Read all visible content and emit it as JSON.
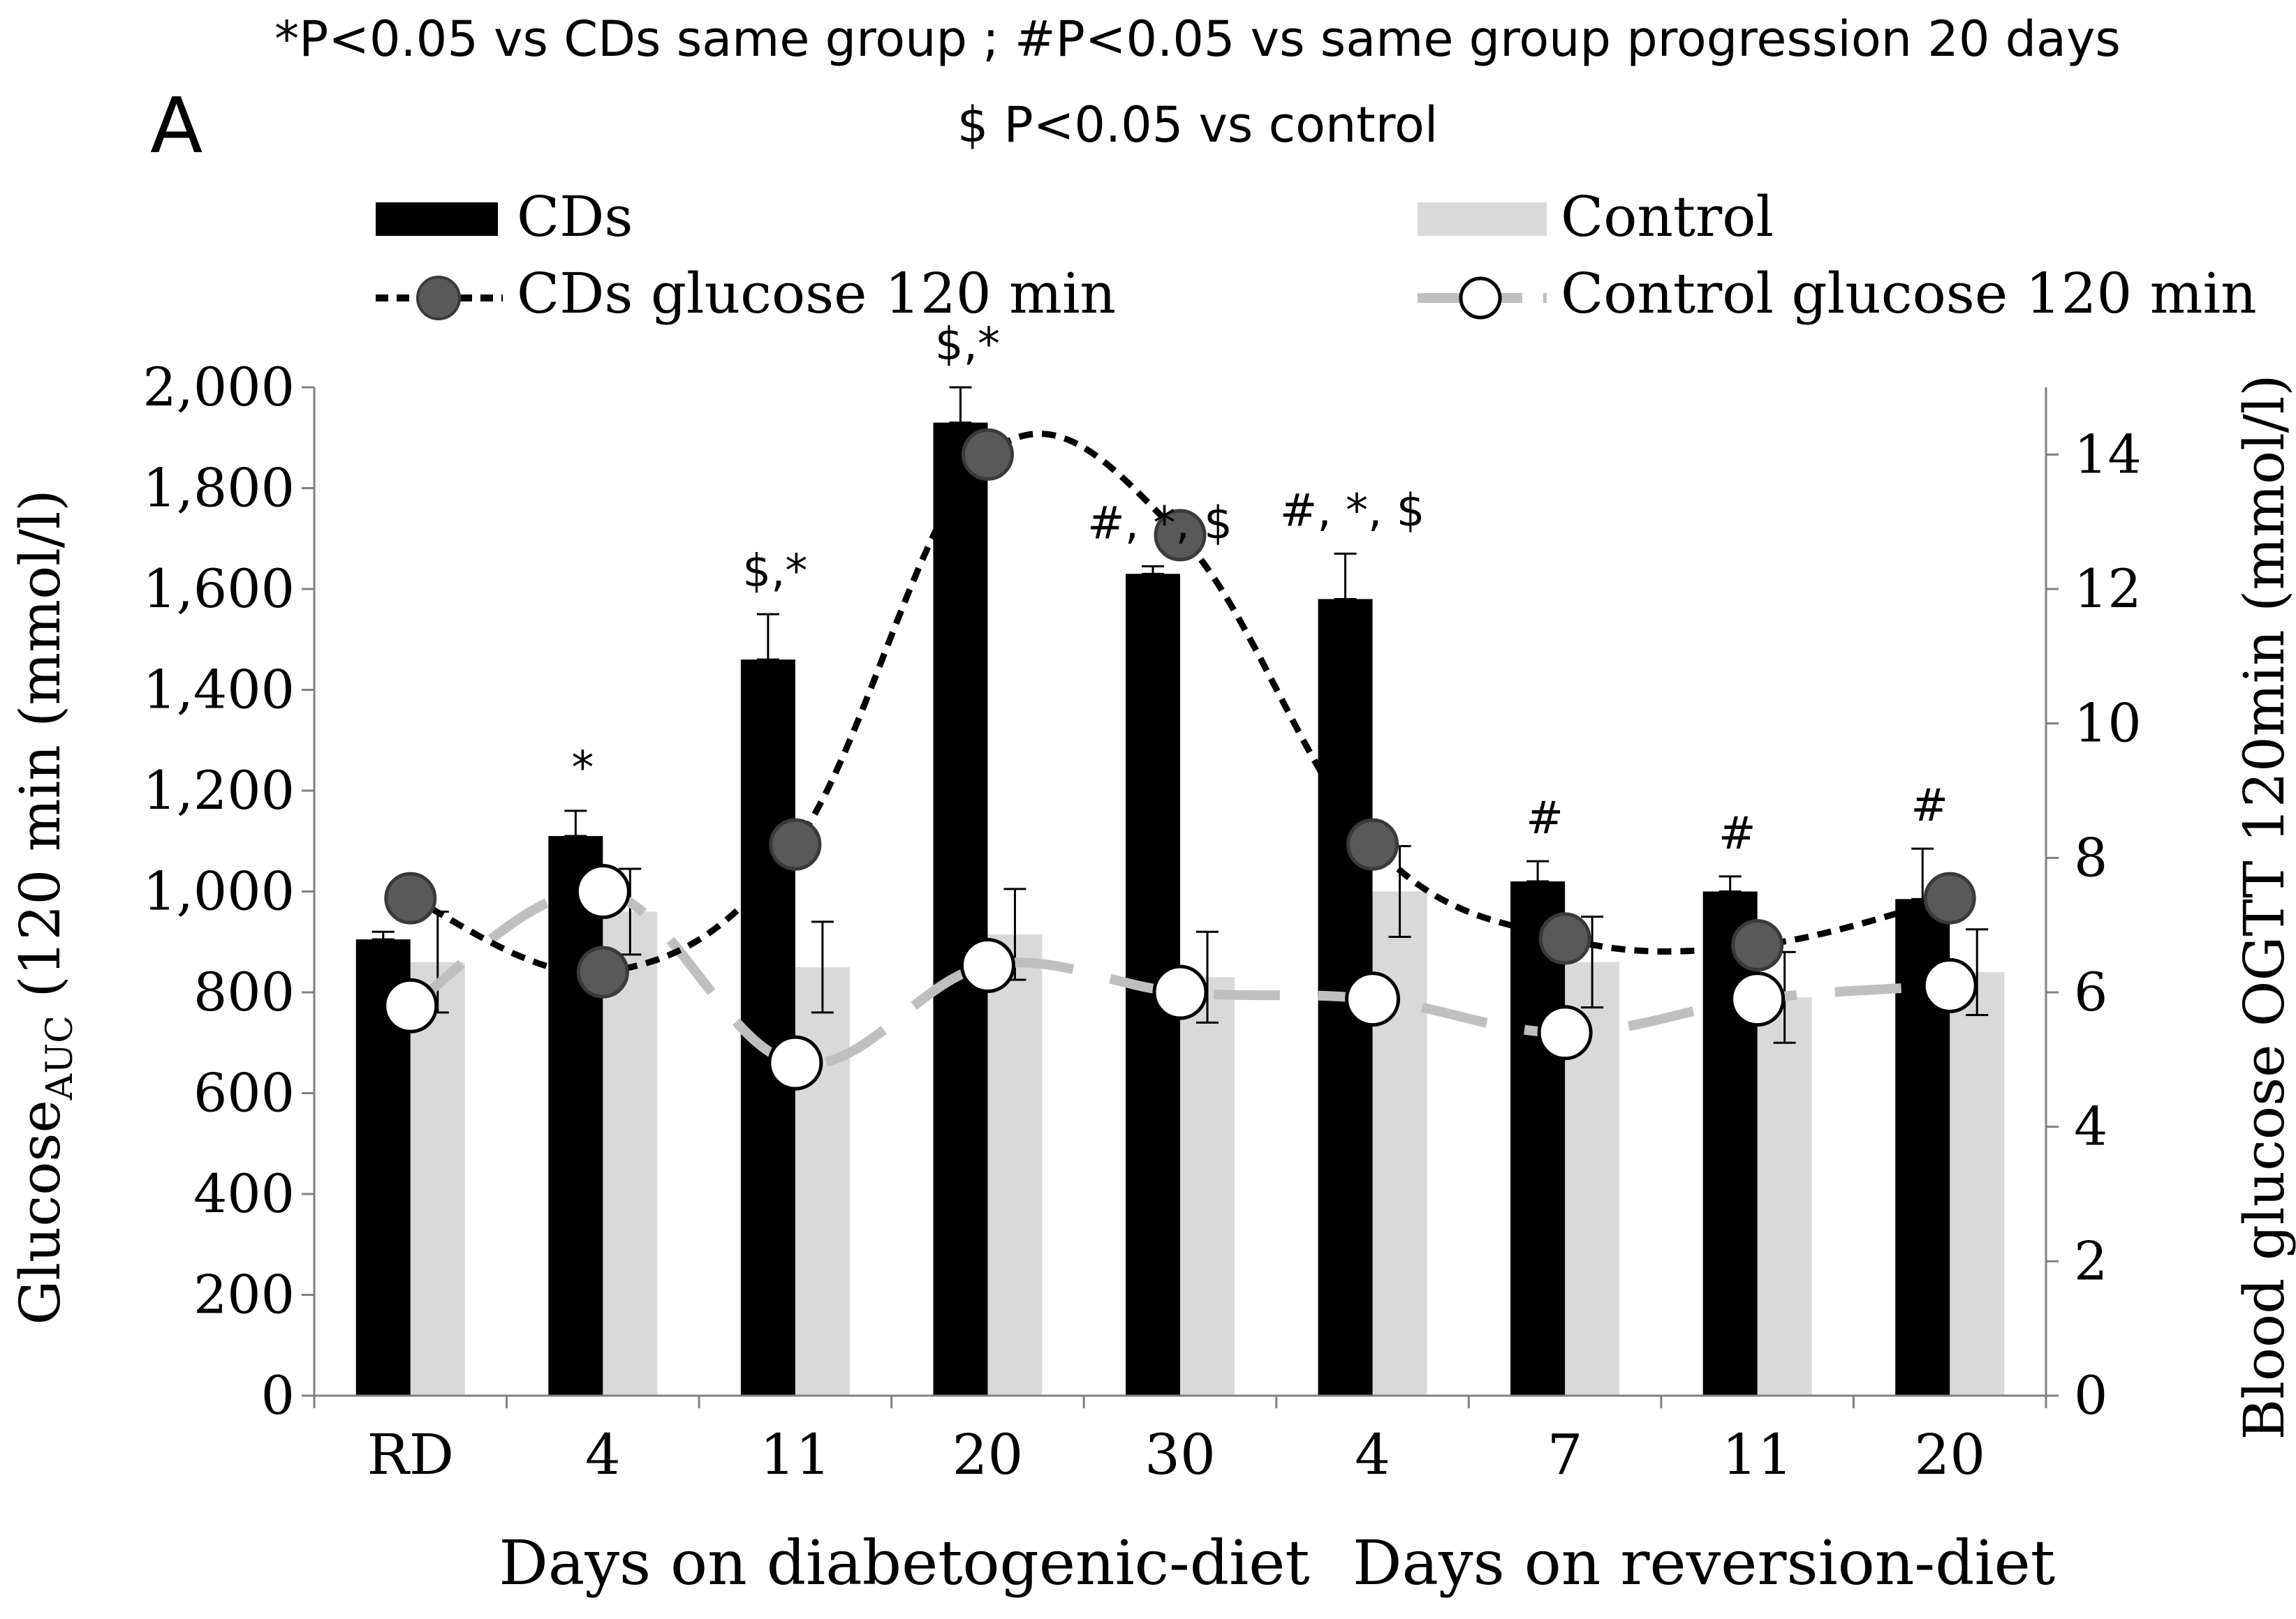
{
  "panel_label": "A",
  "notes": {
    "line1": "*P<0.05 vs CDs same group ; #P<0.05 vs same group progression 20 days",
    "line2": "$ P<0.05 vs control"
  },
  "colors": {
    "cds_bar": "#000000",
    "control_bar": "#d9d9d9",
    "cds_marker": "#595959",
    "control_marker": "#ffffff",
    "control_line": "#bfbfbf",
    "axis": "#808080"
  },
  "chart_data": {
    "type": "bar",
    "categories": [
      "RD",
      "4",
      "11",
      "20",
      "30",
      "4",
      "7",
      "11",
      "20"
    ],
    "xlabels": {
      "left": "Days on diabetogenic-diet",
      "right": "Days on reversion-diet"
    },
    "ylabel": "Glucose",
    "ylabel_sub": "AUC",
    "ylabel_tail": " (120 min (mmol/l)",
    "y2label": "Blood glucose OGTT 120min (mmol/l)",
    "ylim": [
      0,
      2000
    ],
    "yticks": [
      "0",
      "200",
      "400",
      "600",
      "800",
      "1,000",
      "1,200",
      "1,400",
      "1,600",
      "1,800",
      "2,000"
    ],
    "y2lim": [
      0,
      15
    ],
    "y2ticks": [
      "0",
      "2",
      "4",
      "6",
      "8",
      "10",
      "12",
      "14"
    ],
    "series": [
      {
        "name": "CDs",
        "axis": "left",
        "kind": "bar",
        "values": [
          905,
          1110,
          1460,
          1930,
          1630,
          1580,
          1020,
          1000,
          985
        ],
        "errors": [
          15,
          50,
          90,
          70,
          15,
          90,
          40,
          30,
          100
        ]
      },
      {
        "name": "Control",
        "axis": "left",
        "kind": "bar",
        "values": [
          860,
          960,
          850,
          915,
          830,
          1000,
          860,
          790,
          840
        ],
        "errors": [
          100,
          85,
          90,
          90,
          90,
          90,
          90,
          90,
          85
        ]
      },
      {
        "name": "CDs glucose 120 min",
        "axis": "right",
        "kind": "line",
        "values": [
          7.4,
          6.3,
          8.2,
          14.0,
          12.8,
          8.2,
          6.8,
          6.7,
          7.4
        ]
      },
      {
        "name": "Control glucose 120 min",
        "axis": "right",
        "kind": "line",
        "values": [
          5.8,
          7.5,
          4.95,
          6.4,
          6.0,
          5.9,
          5.4,
          5.9,
          6.1
        ]
      }
    ],
    "annotations": [
      "",
      "*",
      "$,*",
      "$,*",
      "#, *, $",
      "#, *, $",
      "#",
      "#",
      "#"
    ],
    "grid": false,
    "legend": "top"
  }
}
